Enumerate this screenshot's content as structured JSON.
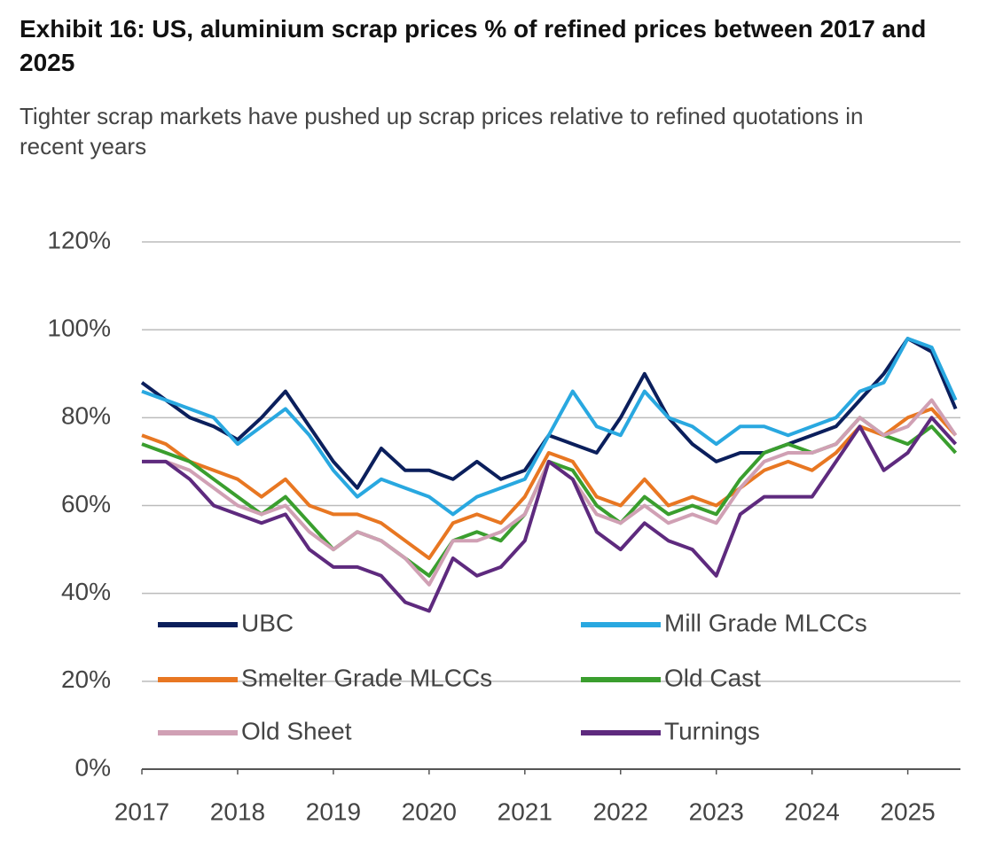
{
  "chart_data": {
    "type": "line",
    "title": "Exhibit 16: US, aluminium scrap prices % of refined prices between 2017 and 2025",
    "subtitle": "Tighter scrap markets have pushed up scrap prices relative to refined quotations in recent years",
    "x": [
      2017.0,
      2017.25,
      2017.5,
      2017.75,
      2018.0,
      2018.25,
      2018.5,
      2018.75,
      2019.0,
      2019.25,
      2019.5,
      2019.75,
      2020.0,
      2020.25,
      2020.5,
      2020.75,
      2021.0,
      2021.25,
      2021.5,
      2021.75,
      2022.0,
      2022.25,
      2022.5,
      2022.75,
      2023.0,
      2023.25,
      2023.5,
      2023.75,
      2024.0,
      2024.25,
      2024.5,
      2024.75,
      2025.0,
      2025.25,
      2025.5
    ],
    "series": [
      {
        "name": "UBC",
        "color": "#0b1f5c",
        "values": [
          88,
          84,
          80,
          78,
          75,
          80,
          86,
          78,
          70,
          64,
          73,
          68,
          68,
          66,
          70,
          66,
          68,
          76,
          74,
          72,
          80,
          90,
          80,
          74,
          70,
          72,
          72,
          74,
          76,
          78,
          84,
          90,
          98,
          95,
          82
        ]
      },
      {
        "name": "Mill Grade MLCCs",
        "color": "#29a8e0",
        "values": [
          86,
          84,
          82,
          80,
          74,
          78,
          82,
          76,
          68,
          62,
          66,
          64,
          62,
          58,
          62,
          64,
          66,
          76,
          86,
          78,
          76,
          86,
          80,
          78,
          74,
          78,
          78,
          76,
          78,
          80,
          86,
          88,
          98,
          96,
          84
        ]
      },
      {
        "name": "Smelter Grade MLCCs",
        "color": "#e87722",
        "values": [
          76,
          74,
          70,
          68,
          66,
          62,
          66,
          60,
          58,
          58,
          56,
          52,
          48,
          56,
          58,
          56,
          62,
          72,
          70,
          62,
          60,
          66,
          60,
          62,
          60,
          64,
          68,
          70,
          68,
          72,
          78,
          76,
          80,
          82,
          76
        ]
      },
      {
        "name": "Old Cast",
        "color": "#3a9e2e",
        "values": [
          74,
          72,
          70,
          66,
          62,
          58,
          62,
          56,
          50,
          54,
          52,
          48,
          44,
          52,
          54,
          52,
          58,
          70,
          68,
          60,
          56,
          62,
          58,
          60,
          58,
          66,
          72,
          74,
          72,
          74,
          80,
          76,
          74,
          78,
          72
        ]
      },
      {
        "name": "Old Sheet",
        "color": "#d0a0b4",
        "values": [
          70,
          70,
          68,
          64,
          60,
          58,
          60,
          54,
          50,
          54,
          52,
          48,
          42,
          52,
          52,
          54,
          58,
          70,
          66,
          58,
          56,
          60,
          56,
          58,
          56,
          64,
          70,
          72,
          72,
          74,
          80,
          76,
          78,
          84,
          76
        ]
      },
      {
        "name": "Turnings",
        "color": "#5e2a7e",
        "values": [
          70,
          70,
          66,
          60,
          58,
          56,
          58,
          50,
          46,
          46,
          44,
          38,
          36,
          48,
          44,
          46,
          52,
          70,
          66,
          54,
          50,
          56,
          52,
          50,
          44,
          58,
          62,
          62,
          62,
          70,
          78,
          68,
          72,
          80,
          74
        ]
      }
    ],
    "xlim": [
      2017,
      2025.55
    ],
    "xticks": [
      2017,
      2018,
      2019,
      2020,
      2021,
      2022,
      2023,
      2024,
      2025
    ],
    "ylim": [
      0,
      120
    ],
    "yticks": [
      {
        "value": 0,
        "label": "0%"
      },
      {
        "value": 20,
        "label": "20%"
      },
      {
        "value": 40,
        "label": "40%"
      },
      {
        "value": 60,
        "label": "60%"
      },
      {
        "value": 80,
        "label": "80%"
      },
      {
        "value": 100,
        "label": "100%"
      },
      {
        "value": 120,
        "label": "120%"
      }
    ],
    "grid": true,
    "legend": "bottom"
  }
}
